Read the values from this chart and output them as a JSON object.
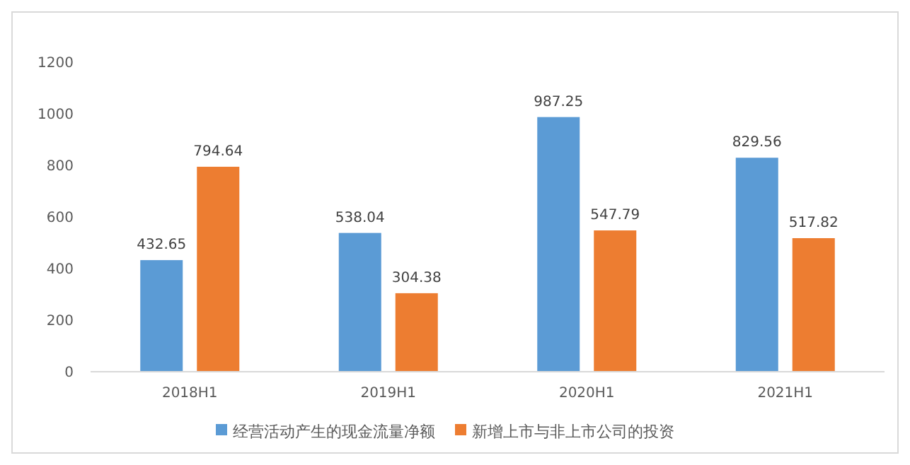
{
  "chart_data": {
    "type": "bar",
    "categories": [
      "2018H1",
      "2019H1",
      "2020H1",
      "2021H1"
    ],
    "series": [
      {
        "name": "经营活动产生的现金流量净额",
        "color": "#5b9bd5",
        "values": [
          432.65,
          538.04,
          987.25,
          829.56
        ]
      },
      {
        "name": "新增上市与非上市公司的投资",
        "color": "#ed7d31",
        "values": [
          794.64,
          304.38,
          547.79,
          517.82
        ]
      }
    ],
    "ylim": [
      0,
      1200
    ],
    "yticks": [
      0,
      200,
      400,
      600,
      800,
      1000,
      1200
    ],
    "data_labels": true,
    "legend": "bottom",
    "grid": false
  }
}
